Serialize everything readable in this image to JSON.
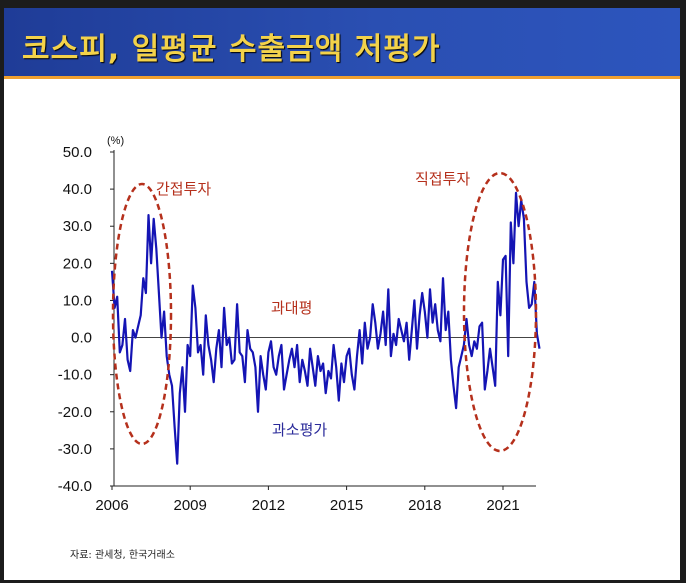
{
  "title": "코스피, 일평균 수출금액 저평가",
  "source": "자료: 관세청, 한국거래소",
  "chart_data": {
    "type": "line",
    "unit_label": "(%)",
    "ylim": [
      -40,
      50
    ],
    "y_ticks": [
      "50.0",
      "40.0",
      "30.0",
      "20.0",
      "10.0",
      "0.0",
      "-10.0",
      "-20.0",
      "-30.0",
      "-40.0"
    ],
    "x_ticks": [
      "2006",
      "2009",
      "2012",
      "2015",
      "2018",
      "2021"
    ],
    "series_color": "#1414b4",
    "annotations": {
      "indirect": "간접투자",
      "direct": "직접투자",
      "overvalued": "과대평",
      "undervalued": "과소평가"
    },
    "x": [
      2006.0,
      2006.1,
      2006.2,
      2006.3,
      2006.4,
      2006.5,
      2006.6,
      2006.7,
      2006.8,
      2006.9,
      2007.0,
      2007.1,
      2007.2,
      2007.3,
      2007.4,
      2007.5,
      2007.6,
      2007.7,
      2007.8,
      2007.9,
      2008.0,
      2008.1,
      2008.2,
      2008.3,
      2008.4,
      2008.5,
      2008.6,
      2008.7,
      2008.8,
      2008.9,
      2009.0,
      2009.1,
      2009.2,
      2009.3,
      2009.4,
      2009.5,
      2009.6,
      2009.7,
      2009.8,
      2009.9,
      2010.0,
      2010.1,
      2010.2,
      2010.3,
      2010.4,
      2010.5,
      2010.6,
      2010.7,
      2010.8,
      2010.9,
      2011.0,
      2011.1,
      2011.2,
      2011.3,
      2011.4,
      2011.5,
      2011.6,
      2011.7,
      2011.8,
      2011.9,
      2012.0,
      2012.1,
      2012.2,
      2012.3,
      2012.4,
      2012.5,
      2012.6,
      2012.7,
      2012.8,
      2012.9,
      2013.0,
      2013.1,
      2013.2,
      2013.3,
      2013.4,
      2013.5,
      2013.6,
      2013.7,
      2013.8,
      2013.9,
      2014.0,
      2014.1,
      2014.2,
      2014.3,
      2014.4,
      2014.5,
      2014.6,
      2014.7,
      2014.8,
      2014.9,
      2015.0,
      2015.1,
      2015.2,
      2015.3,
      2015.4,
      2015.5,
      2015.6,
      2015.7,
      2015.8,
      2015.9,
      2016.0,
      2016.1,
      2016.2,
      2016.3,
      2016.4,
      2016.5,
      2016.6,
      2016.7,
      2016.8,
      2016.9,
      2017.0,
      2017.1,
      2017.2,
      2017.3,
      2017.4,
      2017.5,
      2017.6,
      2017.7,
      2017.8,
      2017.9,
      2018.0,
      2018.1,
      2018.2,
      2018.3,
      2018.4,
      2018.5,
      2018.6,
      2018.7,
      2018.8,
      2018.9,
      2019.0,
      2019.1,
      2019.2,
      2019.3,
      2019.4,
      2019.5,
      2019.6,
      2019.7,
      2019.8,
      2019.9,
      2020.0,
      2020.1,
      2020.2,
      2020.3,
      2020.4,
      2020.5,
      2020.6,
      2020.7,
      2020.8,
      2020.9,
      2021.0,
      2021.1,
      2021.2,
      2021.3,
      2021.4,
      2021.5,
      2021.6,
      2021.7,
      2021.8,
      2021.9,
      2022.0,
      2022.1,
      2022.2,
      2022.3,
      2022.4
    ],
    "values": [
      18,
      8,
      11,
      -4,
      -2,
      5,
      -6,
      -9,
      2,
      0,
      3,
      6,
      16,
      12,
      33,
      20,
      32,
      24,
      12,
      0,
      7,
      -5,
      -10,
      -13,
      -24,
      -34,
      -15,
      -8,
      -20,
      -2,
      -5,
      14,
      8,
      -4,
      -2,
      -10,
      6,
      -2,
      -6,
      -12,
      -3,
      2,
      -8,
      8,
      -2,
      0,
      -7,
      -6,
      9,
      -4,
      -5,
      -12,
      2,
      -3,
      -4,
      -8,
      -20,
      -5,
      -10,
      -14,
      -4,
      -1,
      -8,
      -10,
      -5,
      -2,
      -14,
      -10,
      -6,
      -3,
      -8,
      -2,
      -12,
      -6,
      -9,
      -13,
      -3,
      -8,
      -13,
      -5,
      -9,
      -7,
      -15,
      -9,
      -11,
      -2,
      -8,
      -17,
      -7,
      -12,
      -5,
      -3,
      -10,
      -14,
      -5,
      2,
      -7,
      4,
      -3,
      0,
      9,
      4,
      -3,
      1,
      7,
      -2,
      13,
      -5,
      1,
      -2,
      5,
      2,
      -1,
      4,
      -6,
      2,
      10,
      -3,
      6,
      12,
      7,
      0,
      13,
      4,
      9,
      2,
      -1,
      16,
      2,
      7,
      -6,
      -13,
      -19,
      -8,
      -5,
      -2,
      5,
      -2,
      -5,
      -1,
      -3,
      3,
      4,
      -14,
      -9,
      -3,
      -8,
      -13,
      15,
      6,
      21,
      22,
      -5,
      31,
      20,
      39,
      30,
      37,
      32,
      15,
      8,
      9,
      15,
      1,
      -3
    ]
  }
}
